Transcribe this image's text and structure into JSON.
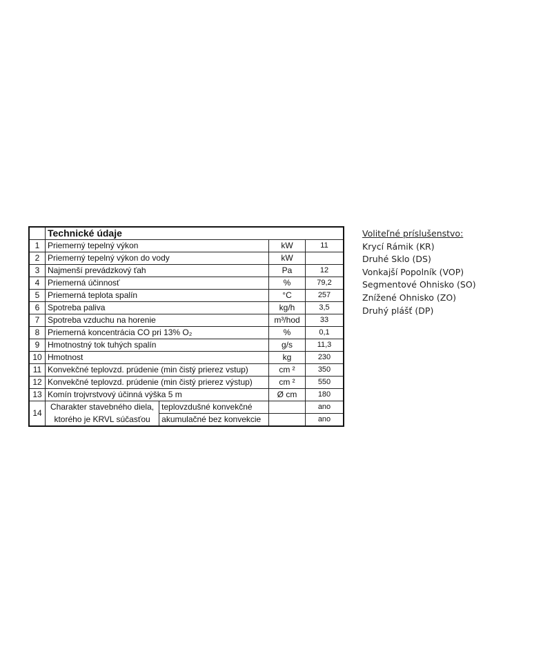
{
  "table": {
    "title": "Technické údaje",
    "rows": [
      {
        "n": "1",
        "label": "Priemerný tepelný výkon",
        "unit": "kW",
        "value": "11"
      },
      {
        "n": "2",
        "label": "Priemerný tepelný výkon do vody",
        "unit": "kW",
        "value": ""
      },
      {
        "n": "3",
        "label": "Najmenší prevádzkový ťah",
        "unit": "Pa",
        "value": "12"
      },
      {
        "n": "4",
        "label": "Priemerná účinnosť",
        "unit": "%",
        "value": "79,2"
      },
      {
        "n": "5",
        "label": "Priemerná teplota spalín",
        "unit": "°C",
        "value": "257"
      },
      {
        "n": "6",
        "label": "Spotreba paliva",
        "unit": "kg/h",
        "value": "3,5"
      },
      {
        "n": "7",
        "label": "Spotreba vzduchu na horenie",
        "unit": "m³/hod",
        "value": "33"
      },
      {
        "n": "8",
        "label": "Priemerná koncentrácia CO pri 13% O₂",
        "unit": "%",
        "value": "0,1"
      },
      {
        "n": "9",
        "label": "Hmotnostný tok tuhých spalín",
        "unit": "g/s",
        "value": "11,3"
      },
      {
        "n": "10",
        "label": "Hmotnost",
        "unit": "kg",
        "value": "230"
      },
      {
        "n": "11",
        "label": "Konvekčné teplovzd. prúdenie (min čistý prierez vstup)",
        "unit": "cm ²",
        "value": "350"
      },
      {
        "n": "12",
        "label": "Konvekčné teplovzd. prúdenie (min čistý prierez výstup)",
        "unit": "cm ²",
        "value": "550"
      },
      {
        "n": "13",
        "label": "Komín trojvrstvový účinná výška 5 m",
        "unit": "Ø cm",
        "value": "180"
      }
    ],
    "row14": {
      "n": "14",
      "label_line1": "Charakter stavebného diela,",
      "label_line2": "ktorého je KRVL súčasťou",
      "sub": [
        {
          "label": "teplovzdušné konvekčné",
          "unit": "",
          "value": "ano"
        },
        {
          "label": "akumulačné bez konvekcie",
          "unit": "",
          "value": "ano"
        }
      ]
    }
  },
  "accessories": {
    "heading": "Voliteľné príslušenstvo:",
    "items": [
      "Krycí Rámik (KR)",
      "Druhé Sklo (DS)",
      "Vonkajší Popolník (VOP)",
      "Segmentové Ohnisko (SO)",
      "Znížené Ohnisko (ZO)",
      "Druhý plášť  (DP)"
    ]
  }
}
